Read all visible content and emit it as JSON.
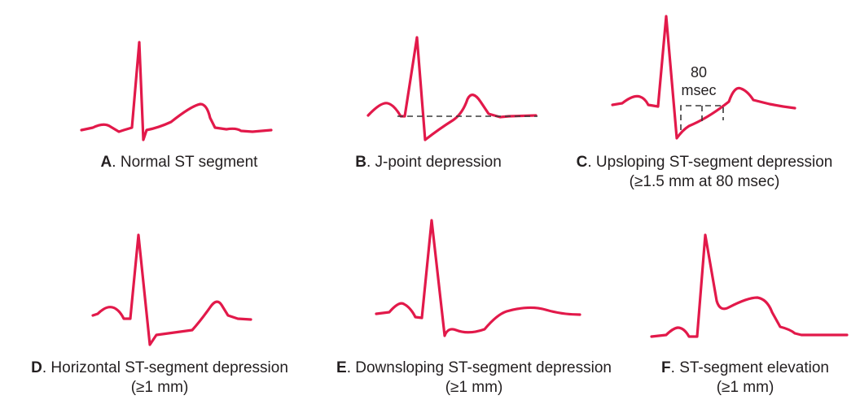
{
  "panels": [
    {
      "letter": "A",
      "sep": ". ",
      "title": "Normal ST segment",
      "criterion": ""
    },
    {
      "letter": "B",
      "sep": ". ",
      "title": "J-point depression",
      "criterion": ""
    },
    {
      "letter": "C",
      "sep": ". ",
      "title": "Upsloping ST-segment depression",
      "criterion": "(≥1.5 mm at 80 msec)"
    },
    {
      "letter": "D",
      "sep": ". ",
      "title": "Horizontal ST-segment depression",
      "criterion": "(≥1 mm)"
    },
    {
      "letter": "E",
      "sep": ". ",
      "title": "Downsloping ST-segment depression",
      "criterion": "(≥1 mm)"
    },
    {
      "letter": "F",
      "sep": ". ",
      "title": "ST-segment elevation",
      "criterion": "(≥1 mm)"
    }
  ],
  "annotation": {
    "line1": "80",
    "line2": "msec"
  },
  "colors": {
    "trace": "#e2194a",
    "text": "#231f20",
    "reference_line": "#3a3a3a"
  }
}
